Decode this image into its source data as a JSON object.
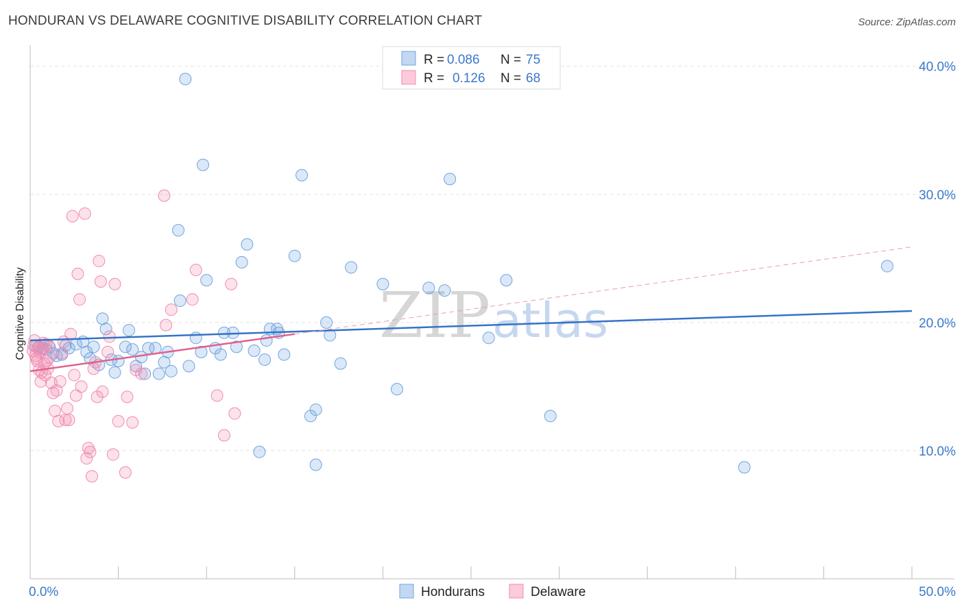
{
  "header": {
    "title": "HONDURAN VS DELAWARE COGNITIVE DISABILITY CORRELATION CHART",
    "source": "Source: ZipAtlas.com"
  },
  "watermark": {
    "zip": "ZIP",
    "atlas": "atlas"
  },
  "legend": {
    "r_label": "R =",
    "n_label": "N =",
    "rows": [
      {
        "r": "0.086",
        "n": "75",
        "color": "#6fa3e0"
      },
      {
        "r": "0.126",
        "n": "68",
        "color": "#f08cb0"
      }
    ]
  },
  "bottom_legend": [
    "Hondurans",
    "Delaware"
  ],
  "chart_data": {
    "type": "scatter",
    "title": "HONDURAN VS DELAWARE COGNITIVE DISABILITY CORRELATION CHART",
    "xlabel": "",
    "ylabel": "Cognitive Disability",
    "xlim": [
      0,
      50
    ],
    "ylim": [
      0,
      41
    ],
    "x_tick_labels": [
      "0.0%",
      "50.0%"
    ],
    "y_ticks": [
      10,
      20,
      30,
      40
    ],
    "y_tick_labels": [
      "10.0%",
      "20.0%",
      "30.0%",
      "40.0%"
    ],
    "grid": true,
    "legend_position": "top-center",
    "series": [
      {
        "name": "Hondurans",
        "color": "#6fa3e0",
        "trend": {
          "x": [
            0,
            50
          ],
          "y": [
            18.6,
            20.9
          ]
        },
        "points": [
          [
            0.3,
            18.2
          ],
          [
            0.5,
            18.1
          ],
          [
            0.7,
            18.0
          ],
          [
            0.9,
            17.9
          ],
          [
            1.1,
            18.1
          ],
          [
            1.3,
            17.6
          ],
          [
            1.5,
            17.4
          ],
          [
            1.8,
            17.5
          ],
          [
            2.0,
            18.2
          ],
          [
            2.2,
            18.0
          ],
          [
            2.6,
            18.3
          ],
          [
            3.0,
            18.5
          ],
          [
            3.2,
            17.7
          ],
          [
            3.4,
            17.2
          ],
          [
            3.6,
            18.1
          ],
          [
            3.9,
            16.7
          ],
          [
            4.1,
            20.3
          ],
          [
            4.3,
            19.5
          ],
          [
            4.6,
            17.1
          ],
          [
            4.8,
            16.1
          ],
          [
            5.0,
            17.0
          ],
          [
            5.4,
            18.1
          ],
          [
            5.6,
            19.4
          ],
          [
            5.8,
            17.9
          ],
          [
            6.0,
            16.6
          ],
          [
            6.3,
            17.3
          ],
          [
            6.5,
            16.0
          ],
          [
            6.7,
            18.0
          ],
          [
            7.1,
            18.0
          ],
          [
            7.3,
            16.0
          ],
          [
            7.6,
            16.9
          ],
          [
            7.8,
            17.7
          ],
          [
            8.0,
            16.2
          ],
          [
            8.4,
            27.2
          ],
          [
            8.5,
            21.7
          ],
          [
            8.8,
            39.0
          ],
          [
            9.0,
            16.6
          ],
          [
            9.4,
            18.8
          ],
          [
            9.7,
            17.7
          ],
          [
            9.8,
            32.3
          ],
          [
            10.0,
            23.3
          ],
          [
            10.5,
            18.0
          ],
          [
            10.8,
            17.5
          ],
          [
            11.0,
            19.2
          ],
          [
            11.5,
            19.2
          ],
          [
            11.7,
            18.1
          ],
          [
            12.0,
            24.7
          ],
          [
            12.3,
            26.1
          ],
          [
            12.7,
            17.8
          ],
          [
            13.0,
            9.9
          ],
          [
            13.3,
            17.1
          ],
          [
            13.4,
            18.6
          ],
          [
            13.6,
            19.5
          ],
          [
            14.0,
            19.5
          ],
          [
            14.1,
            19.2
          ],
          [
            14.4,
            17.5
          ],
          [
            15.0,
            25.2
          ],
          [
            15.4,
            31.5
          ],
          [
            15.9,
            12.7
          ],
          [
            16.2,
            13.2
          ],
          [
            16.2,
            8.9
          ],
          [
            16.8,
            20.0
          ],
          [
            17.0,
            19.0
          ],
          [
            17.6,
            16.8
          ],
          [
            18.2,
            24.3
          ],
          [
            20.0,
            23.0
          ],
          [
            20.8,
            14.8
          ],
          [
            22.6,
            22.7
          ],
          [
            23.5,
            22.5
          ],
          [
            23.8,
            31.2
          ],
          [
            26.0,
            18.8
          ],
          [
            27.0,
            23.3
          ],
          [
            29.5,
            12.7
          ],
          [
            40.5,
            8.7
          ],
          [
            48.6,
            24.4
          ]
        ]
      },
      {
        "name": "Delaware",
        "color": "#f08cb0",
        "trend": {
          "x": [
            0,
            15
          ],
          "y": [
            16.2,
            19.1
          ]
        },
        "trend_dashed": {
          "x": [
            15,
            50
          ],
          "y": [
            19.1,
            25.9
          ]
        },
        "points": [
          [
            0.2,
            18.2
          ],
          [
            0.3,
            17.4
          ],
          [
            0.4,
            17.0
          ],
          [
            0.5,
            16.3
          ],
          [
            0.6,
            15.4
          ],
          [
            0.7,
            17.9
          ],
          [
            0.8,
            16.8
          ],
          [
            0.9,
            18.3
          ],
          [
            1.0,
            16.4
          ],
          [
            1.1,
            17.3
          ],
          [
            1.2,
            15.3
          ],
          [
            1.3,
            14.5
          ],
          [
            1.4,
            13.1
          ],
          [
            1.5,
            14.7
          ],
          [
            1.6,
            12.3
          ],
          [
            1.7,
            15.4
          ],
          [
            1.8,
            17.6
          ],
          [
            1.9,
            18.5
          ],
          [
            2.0,
            12.4
          ],
          [
            2.1,
            13.3
          ],
          [
            2.2,
            12.4
          ],
          [
            2.3,
            19.1
          ],
          [
            2.4,
            28.3
          ],
          [
            2.5,
            15.9
          ],
          [
            2.6,
            14.3
          ],
          [
            2.7,
            23.8
          ],
          [
            2.8,
            21.8
          ],
          [
            2.9,
            15.0
          ],
          [
            3.1,
            28.5
          ],
          [
            3.2,
            9.4
          ],
          [
            3.3,
            10.2
          ],
          [
            3.4,
            9.9
          ],
          [
            3.5,
            8.0
          ],
          [
            3.6,
            16.4
          ],
          [
            3.7,
            16.9
          ],
          [
            3.8,
            14.2
          ],
          [
            3.9,
            24.8
          ],
          [
            4.0,
            23.2
          ],
          [
            4.1,
            14.6
          ],
          [
            4.4,
            17.7
          ],
          [
            4.5,
            18.9
          ],
          [
            4.7,
            9.7
          ],
          [
            4.8,
            23.0
          ],
          [
            5.0,
            12.3
          ],
          [
            5.4,
            8.3
          ],
          [
            5.5,
            14.2
          ],
          [
            5.8,
            12.2
          ],
          [
            6.0,
            16.3
          ],
          [
            6.3,
            16.0
          ],
          [
            7.6,
            29.9
          ],
          [
            7.7,
            19.8
          ],
          [
            8.0,
            21.0
          ],
          [
            9.2,
            21.8
          ],
          [
            9.4,
            24.1
          ],
          [
            10.6,
            14.3
          ],
          [
            11.0,
            11.2
          ],
          [
            11.4,
            23.0
          ],
          [
            11.6,
            12.9
          ],
          [
            0.15,
            17.8
          ],
          [
            0.25,
            18.6
          ],
          [
            0.35,
            17.2
          ],
          [
            0.45,
            18.0
          ],
          [
            0.55,
            17.7
          ],
          [
            0.65,
            16.1
          ],
          [
            0.75,
            18.4
          ],
          [
            0.85,
            15.9
          ],
          [
            0.95,
            17.0
          ],
          [
            1.05,
            18.2
          ]
        ]
      }
    ]
  }
}
